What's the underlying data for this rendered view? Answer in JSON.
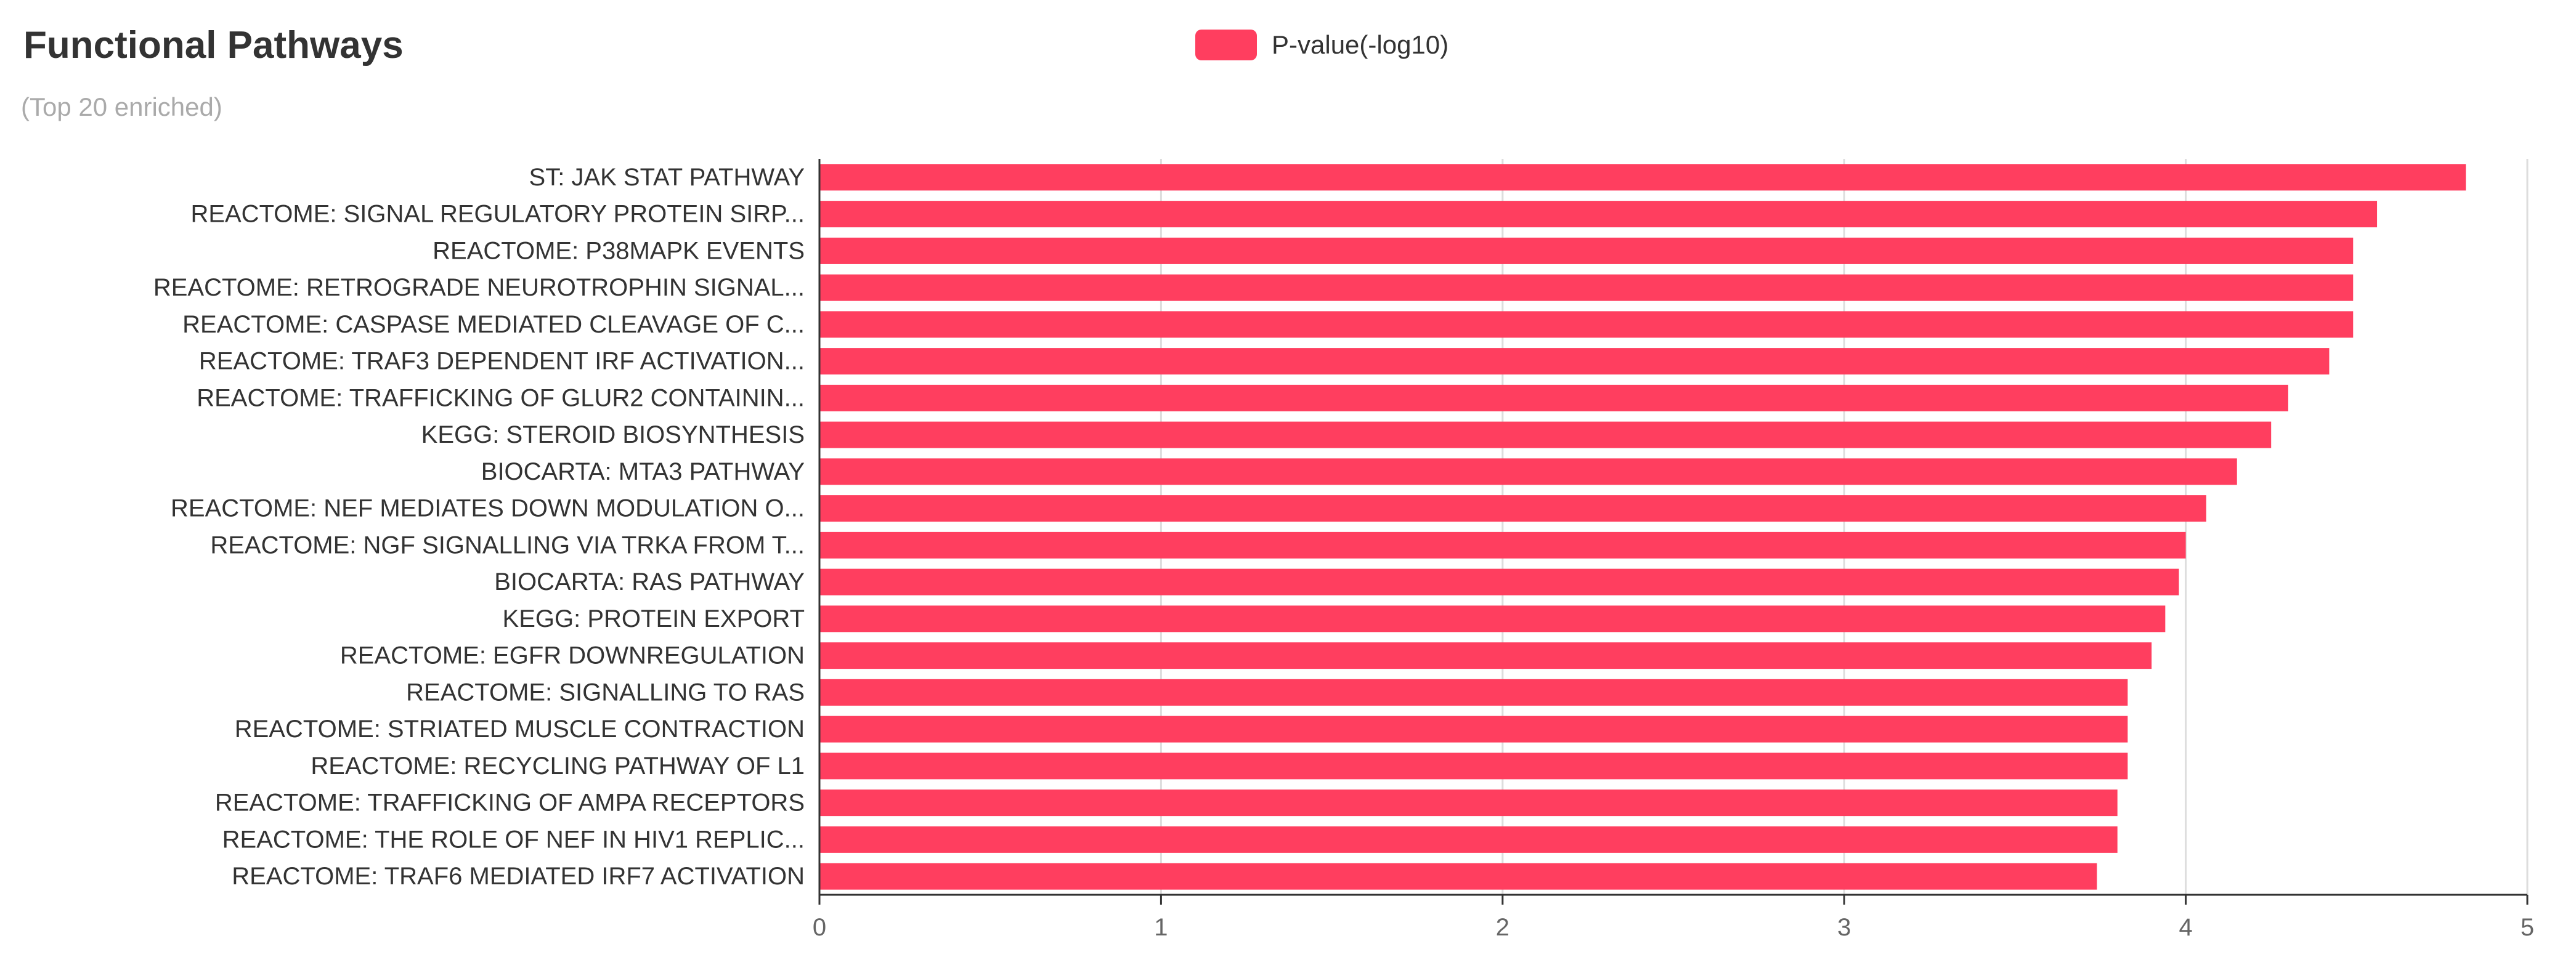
{
  "chart_data": {
    "type": "bar",
    "orientation": "horizontal",
    "title": "Functional Pathways",
    "subtitle": "(Top 20 enriched)",
    "xlabel": "",
    "ylabel": "",
    "xlim": [
      0,
      5
    ],
    "x_ticks": [
      "0",
      "1",
      "2",
      "3",
      "4",
      "5"
    ],
    "grid": "vertical",
    "legend_position": "top-center",
    "categories": [
      "ST: JAK STAT PATHWAY",
      "REACTOME: SIGNAL REGULATORY PROTEIN SIRP...",
      "REACTOME: P38MAPK EVENTS",
      "REACTOME: RETROGRADE NEUROTROPHIN SIGNAL...",
      "REACTOME: CASPASE MEDIATED CLEAVAGE OF C...",
      "REACTOME: TRAF3 DEPENDENT IRF ACTIVATION...",
      "REACTOME: TRAFFICKING OF GLUR2 CONTAININ...",
      "KEGG: STEROID BIOSYNTHESIS",
      "BIOCARTA: MTA3 PATHWAY",
      "REACTOME: NEF MEDIATES DOWN MODULATION O...",
      "REACTOME: NGF SIGNALLING VIA TRKA FROM T...",
      "BIOCARTA: RAS PATHWAY",
      "KEGG: PROTEIN EXPORT",
      "REACTOME: EGFR DOWNREGULATION",
      "REACTOME: SIGNALLING TO RAS",
      "REACTOME: STRIATED MUSCLE CONTRACTION",
      "REACTOME: RECYCLING PATHWAY OF L1",
      "REACTOME: TRAFFICKING OF AMPA RECEPTORS",
      "REACTOME: THE ROLE OF NEF IN HIV1 REPLIC...",
      "REACTOME: TRAF6 MEDIATED IRF7 ACTIVATION"
    ],
    "series": [
      {
        "name": "P-value(-log10)",
        "color": "#ff3e5f",
        "values": [
          4.82,
          4.56,
          4.49,
          4.49,
          4.49,
          4.42,
          4.3,
          4.25,
          4.15,
          4.06,
          4.0,
          3.98,
          3.94,
          3.9,
          3.83,
          3.83,
          3.83,
          3.8,
          3.8,
          3.74
        ]
      }
    ]
  }
}
